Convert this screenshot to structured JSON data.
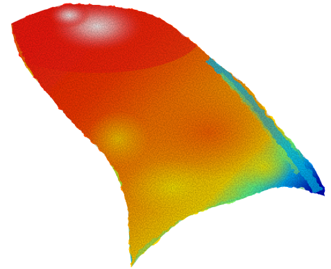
{
  "scene": {
    "subject": "terrain-surface",
    "background_color": "#ffffff",
    "colormap": {
      "name": "jet",
      "stops": [
        "#000080",
        "#0000ff",
        "#00c8ff",
        "#40ffb0",
        "#e0ff20",
        "#ffd000",
        "#ff8000",
        "#ff2000",
        "#ff6060",
        "#ffffff"
      ]
    }
  }
}
